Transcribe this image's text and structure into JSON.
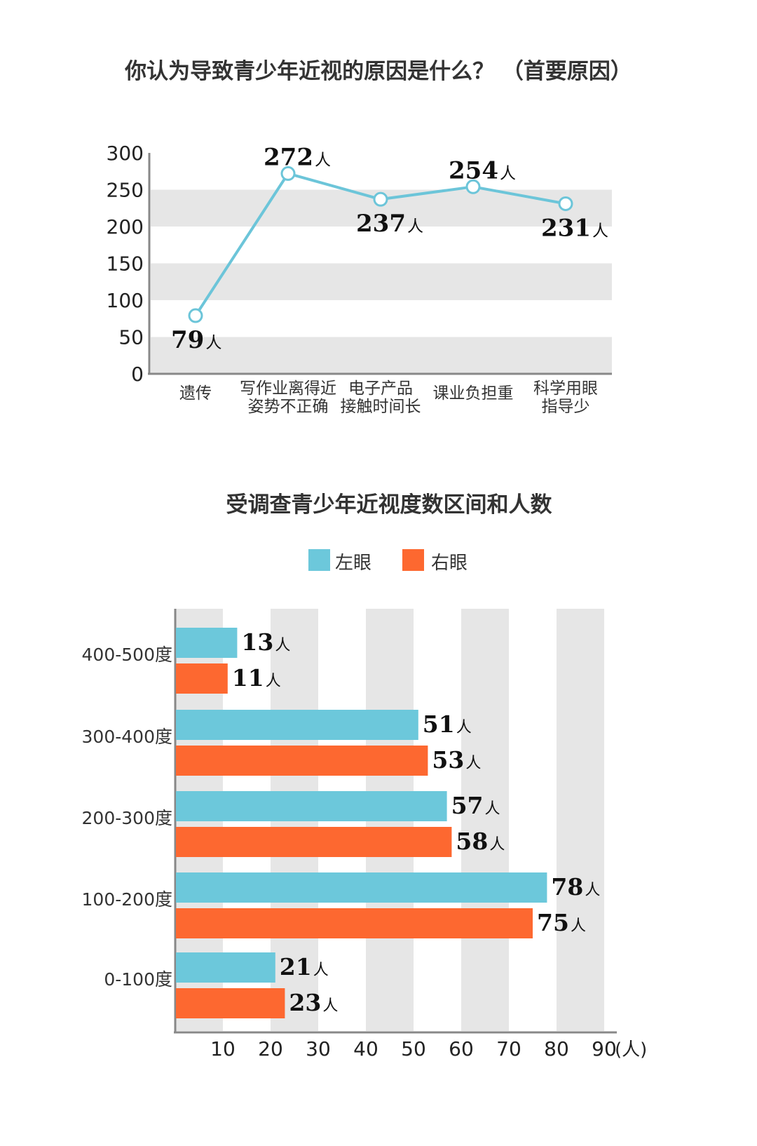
{
  "chart_data": [
    {
      "type": "line",
      "title": "你认为导致青少年近视的原因是什么？ （首要原因）",
      "categories": [
        [
          "遗传"
        ],
        [
          "写作业离得近",
          "姿势不正确"
        ],
        [
          "电子产品",
          "接触时间长"
        ],
        [
          "课业负担重"
        ],
        [
          "科学用眼",
          "指导少"
        ]
      ],
      "values": [
        79,
        272,
        237,
        254,
        231
      ],
      "value_unit": "人",
      "ylim": [
        0,
        300
      ],
      "yticks": [
        "0",
        "50",
        "100",
        "150",
        "200",
        "250",
        "300"
      ],
      "line_color": "#6cc5d9",
      "band_color": "#e6e6e6"
    },
    {
      "type": "bar",
      "orientation": "horizontal",
      "title": "受调查青少年近视度数区间和人数",
      "categories": [
        "400-500度",
        "300-400度",
        "200-300度",
        "100-200度",
        "0-100度"
      ],
      "series": [
        {
          "name": "左眼",
          "color": "#6cc8db",
          "values": [
            13,
            51,
            57,
            78,
            21
          ]
        },
        {
          "name": "右眼",
          "color": "#fd6830",
          "values": [
            11,
            53,
            58,
            75,
            23
          ]
        }
      ],
      "value_unit": "人",
      "xlim": [
        0,
        90
      ],
      "xticks": [
        "10",
        "20",
        "30",
        "40",
        "50",
        "60",
        "70",
        "80",
        "90"
      ],
      "x_unit_label": "(人)",
      "legend_position": "top-center",
      "band_color": "#e6e6e6"
    }
  ]
}
